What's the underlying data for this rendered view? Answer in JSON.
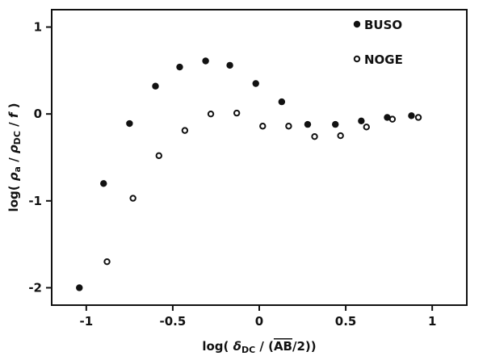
{
  "chart_data": {
    "type": "scatter",
    "xlabel": "log( δDC / (AB/2))",
    "ylabel": "log( ρa / ρDC / f )",
    "xlim": [
      -1.2,
      1.2
    ],
    "ylim": [
      -2.2,
      1.2
    ],
    "x_ticks": [
      -1,
      -0.5,
      0,
      0.5,
      1
    ],
    "x_tick_labels": [
      "-1",
      "-0.5",
      "0",
      "0.5",
      "1"
    ],
    "y_ticks": [
      -2,
      -1,
      0,
      1
    ],
    "y_tick_labels": [
      "-2",
      "-1",
      "0",
      "1"
    ],
    "grid": false,
    "legend_position": "top-right",
    "series": [
      {
        "name": "BUSO",
        "marker": "filled-circle",
        "color": "#111111",
        "x": [
          -1.04,
          -0.9,
          -0.75,
          -0.6,
          -0.46,
          -0.31,
          -0.17,
          -0.02,
          0.13,
          0.28,
          0.44,
          0.59,
          0.74,
          0.88
        ],
        "y": [
          -2.0,
          -0.8,
          -0.11,
          0.32,
          0.54,
          0.61,
          0.56,
          0.35,
          0.14,
          -0.12,
          -0.12,
          -0.08,
          -0.04,
          -0.02
        ]
      },
      {
        "name": "NOGE",
        "marker": "open-circle",
        "color": "#111111",
        "x": [
          -0.88,
          -0.73,
          -0.58,
          -0.43,
          -0.28,
          -0.13,
          0.02,
          0.17,
          0.32,
          0.47,
          0.62,
          0.77,
          0.92
        ],
        "y": [
          -1.7,
          -0.97,
          -0.48,
          -0.19,
          0.0,
          0.01,
          -0.14,
          -0.14,
          -0.26,
          -0.25,
          -0.15,
          -0.06,
          -0.04
        ]
      }
    ]
  }
}
